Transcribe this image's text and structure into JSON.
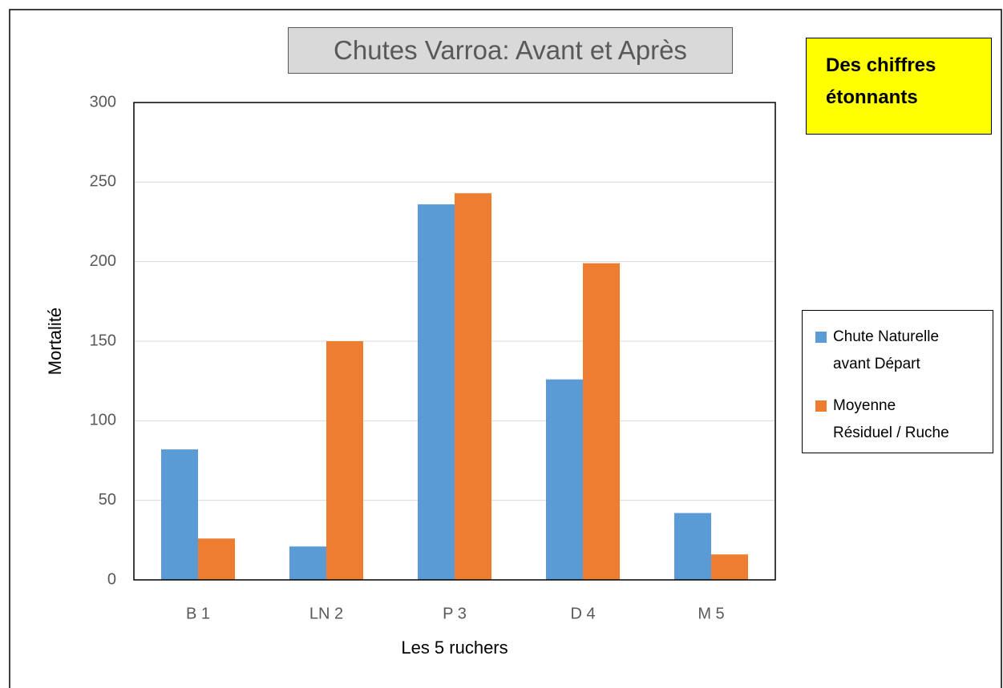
{
  "chart_data": {
    "type": "bar",
    "title": "Chutes Varroa: Avant et Après",
    "annotation": "Des chiffres étonnants",
    "x_label": "Les 5 ruchers",
    "y_label": "Mortalité",
    "categories": [
      "B 1",
      "LN 2",
      "P 3",
      "D 4",
      "M 5"
    ],
    "series": [
      {
        "name": "Chute Naturelle avant Départ",
        "color": "#5b9bd5",
        "values": [
          82,
          21,
          236,
          126,
          42
        ]
      },
      {
        "name": "Moyenne Résiduel / Ruche",
        "color": "#ed7d31",
        "values": [
          26,
          150,
          243,
          199,
          16
        ]
      }
    ],
    "ylim": [
      0,
      300
    ],
    "yticks": [
      0,
      50,
      100,
      150,
      200,
      250,
      300
    ],
    "grid": true,
    "legend": "right"
  }
}
